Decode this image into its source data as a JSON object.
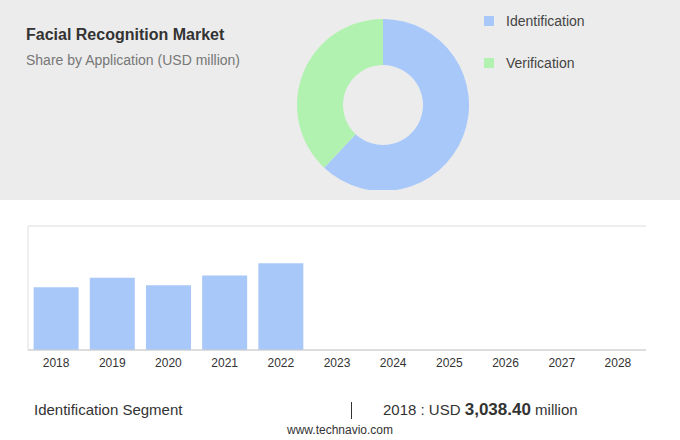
{
  "chart_data": [
    {
      "type": "pie",
      "title": "Facial Recognition Market",
      "subtitle": "Share by Application (USD million)",
      "categories": [
        "Identification",
        "Verification"
      ],
      "values": [
        62,
        38
      ],
      "colors": [
        "#a8c8fa",
        "#b2f2b0"
      ],
      "legend": "upper right"
    },
    {
      "type": "bar",
      "categories": [
        "2018",
        "2019",
        "2020",
        "2021",
        "2022",
        "2023",
        "2024",
        "2025",
        "2026",
        "2027",
        "2028"
      ],
      "values": [
        3038.4,
        3500,
        3130,
        3600,
        4200,
        null,
        null,
        null,
        null,
        null,
        null
      ],
      "color": "#a8c8fa",
      "ylim": [
        0,
        6000
      ],
      "yticks": [
        0,
        1000,
        2000,
        3000,
        4000,
        5000,
        6000
      ],
      "grid": true,
      "tick_labels": "x",
      "annotations": [
        "Identification Segment",
        "2018 : USD 3,038.40 million",
        "www.technavio.com"
      ]
    }
  ]
}
